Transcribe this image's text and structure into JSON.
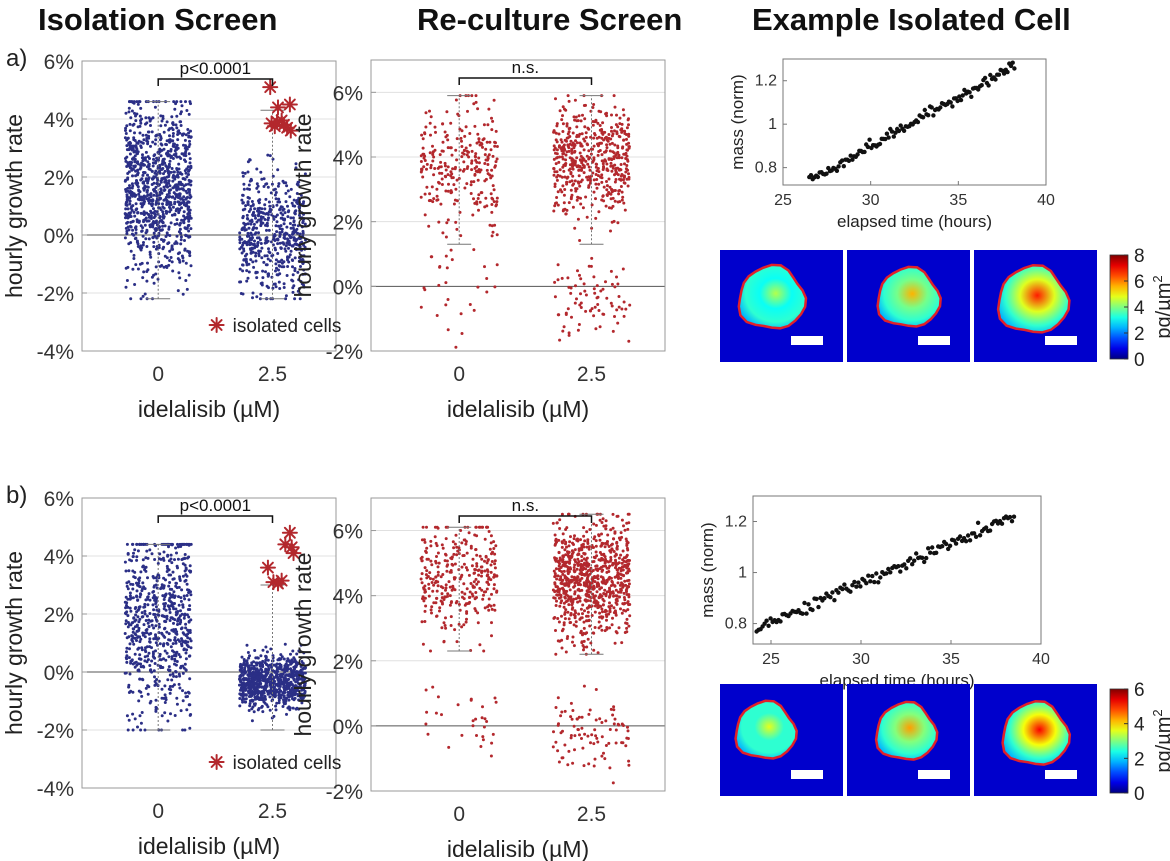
{
  "titles": {
    "isolation": "Isolation Screen",
    "reculture": "Re-culture Screen",
    "example": "Example Isolated Cell"
  },
  "row_labels": [
    "a)",
    "b)"
  ],
  "colors": {
    "isolation_points": "#2b2f86",
    "isolated_cells": "#b3282d",
    "reculture_points": "#b3282d",
    "trace_points": "#111111",
    "background_blue": "#0000cc"
  },
  "colorbars": [
    {
      "label": "pg/µm",
      "superscript": "2",
      "ticks": [
        "8",
        "6",
        "4",
        "2",
        "0"
      ],
      "max": 8
    },
    {
      "label": "pg/µm",
      "superscript": "2",
      "ticks": [
        "6",
        "4",
        "2",
        "0"
      ],
      "max": 6
    }
  ],
  "chart_data": [
    {
      "id": "a-isolation",
      "type": "scatter",
      "title": "",
      "xlabel": "idelalisib (µM)",
      "ylabel": "hourly growth rate",
      "categories": [
        "0",
        "2.5"
      ],
      "ylim": [
        -4,
        6
      ],
      "yticks": [
        "6%",
        "4%",
        "2%",
        "0%",
        "-2%",
        "-4%"
      ],
      "ytick_values": [
        6,
        4,
        2,
        0,
        -2,
        -4
      ],
      "grid": true,
      "annotation": "p<0.0001",
      "legend": {
        "label": "isolated cells",
        "position": "bottom-right"
      },
      "series": [
        {
          "category": "0",
          "n": 1000,
          "median": 1.6,
          "q1": 0.6,
          "q3": 2.6,
          "whisker_low": -2.2,
          "whisker_high": 4.6
        },
        {
          "category": "2.5",
          "n": 550,
          "median": 0.0,
          "q1": -0.4,
          "q3": 1.0,
          "whisker_low": -2.2,
          "whisker_high": 4.3
        }
      ],
      "isolated_cells": [
        [
          2.45,
          5.1
        ],
        [
          2.62,
          4.4
        ],
        [
          2.88,
          4.5
        ],
        [
          2.48,
          3.85
        ],
        [
          2.6,
          3.9
        ],
        [
          2.7,
          3.95
        ],
        [
          2.75,
          3.8
        ],
        [
          2.82,
          3.7
        ],
        [
          2.9,
          3.6
        ],
        [
          2.55,
          3.75
        ]
      ]
    },
    {
      "id": "a-reculture",
      "type": "scatter",
      "title": "",
      "xlabel": "idelalisib (µM)",
      "ylabel": "hourly growth rate",
      "categories": [
        "0",
        "2.5"
      ],
      "ylim": [
        -2,
        7
      ],
      "yticks": [
        "6%",
        "4%",
        "2%",
        "0%",
        "-2%"
      ],
      "ytick_values": [
        6,
        4,
        2,
        0,
        -2
      ],
      "grid": true,
      "annotation": "n.s.",
      "series": [
        {
          "category": "0",
          "n": 300,
          "median": 3.9,
          "q1": 3.2,
          "q3": 4.4,
          "whisker_low": 1.3,
          "whisker_high": 5.9,
          "low_cluster_n": 30,
          "low_cluster_center": 0.0
        },
        {
          "category": "2.5",
          "n": 600,
          "median": 3.9,
          "q1": 3.3,
          "q3": 4.4,
          "whisker_low": 1.3,
          "whisker_high": 5.9,
          "low_cluster_n": 80,
          "low_cluster_center": -0.4
        }
      ]
    },
    {
      "id": "a-trace",
      "type": "scatter",
      "title": "",
      "xlabel": "elapsed time (hours)",
      "ylabel": "mass (norm)",
      "xlim": [
        25,
        40
      ],
      "ylim": [
        0.72,
        1.3
      ],
      "xticks": [
        "25",
        "30",
        "35",
        "40"
      ],
      "xtick_values": [
        25,
        30,
        35,
        40
      ],
      "yticks": [
        "1.2",
        "1",
        "0.8"
      ],
      "ytick_values": [
        1.2,
        1.0,
        0.8
      ],
      "trend": {
        "x_start": 26.5,
        "x_end": 38.2,
        "y_start": 0.74,
        "y_end": 1.27,
        "n_points": 120
      }
    },
    {
      "id": "b-isolation",
      "type": "scatter",
      "title": "",
      "xlabel": "idelalisib (µM)",
      "ylabel": "hourly growth rate",
      "categories": [
        "0",
        "2.5"
      ],
      "ylim": [
        -4,
        6
      ],
      "yticks": [
        "6%",
        "4%",
        "2%",
        "0%",
        "-2%",
        "-4%"
      ],
      "ytick_values": [
        6,
        4,
        2,
        0,
        -2,
        -4
      ],
      "grid": true,
      "annotation": "p<0.0001",
      "legend": {
        "label": "isolated cells",
        "position": "bottom-right"
      },
      "series": [
        {
          "category": "0",
          "n": 700,
          "median": 1.8,
          "q1": 0.6,
          "q3": 2.8,
          "whisker_low": -2.0,
          "whisker_high": 4.4
        },
        {
          "category": "2.5",
          "n": 800,
          "median": -0.3,
          "q1": -0.6,
          "q3": 0.0,
          "whisker_low": -2.0,
          "whisker_high": 3.0
        }
      ],
      "isolated_cells": [
        [
          2.4,
          3.6
        ],
        [
          2.52,
          3.1
        ],
        [
          2.62,
          3.05
        ],
        [
          2.7,
          3.15
        ],
        [
          2.78,
          4.4
        ],
        [
          2.88,
          4.8
        ],
        [
          2.92,
          4.3
        ],
        [
          2.96,
          4.1
        ]
      ]
    },
    {
      "id": "b-reculture",
      "type": "scatter",
      "title": "",
      "xlabel": "idelalisib (µM)",
      "ylabel": "hourly growth rate",
      "categories": [
        "0",
        "2.5"
      ],
      "ylim": [
        -2,
        7
      ],
      "yticks": [
        "6%",
        "4%",
        "2%",
        "0%",
        "-2%"
      ],
      "ytick_values": [
        6,
        4,
        2,
        0,
        -2
      ],
      "grid": true,
      "annotation": "n.s.",
      "series": [
        {
          "category": "0",
          "n": 350,
          "median": 4.5,
          "q1": 3.9,
          "q3": 5.0,
          "whisker_low": 2.3,
          "whisker_high": 6.1,
          "low_cluster_n": 30,
          "low_cluster_center": 0.0
        },
        {
          "category": "2.5",
          "n": 900,
          "median": 4.5,
          "q1": 3.9,
          "q3": 5.1,
          "whisker_low": 2.2,
          "whisker_high": 6.5,
          "low_cluster_n": 90,
          "low_cluster_center": -0.3
        }
      ]
    },
    {
      "id": "b-trace",
      "type": "scatter",
      "title": "",
      "xlabel": "elapsed time (hours)",
      "ylabel": "mass (norm)",
      "xlim": [
        24,
        40
      ],
      "ylim": [
        0.72,
        1.3
      ],
      "xticks": [
        "25",
        "30",
        "35",
        "40"
      ],
      "xtick_values": [
        25,
        30,
        35,
        40
      ],
      "yticks": [
        "1.2",
        "1",
        "0.8"
      ],
      "ytick_values": [
        1.2,
        1.0,
        0.8
      ],
      "trend": {
        "x_start": 24.2,
        "x_end": 38.5,
        "y_start": 0.78,
        "y_end": 1.22,
        "n_points": 130
      }
    }
  ],
  "cell_images": [
    {
      "row": "a",
      "frames": [
        {
          "peak": 0.55
        },
        {
          "peak": 0.7
        },
        {
          "peak": 0.85
        }
      ]
    },
    {
      "row": "b",
      "frames": [
        {
          "peak": 0.6
        },
        {
          "peak": 0.72
        },
        {
          "peak": 0.88
        }
      ]
    }
  ]
}
